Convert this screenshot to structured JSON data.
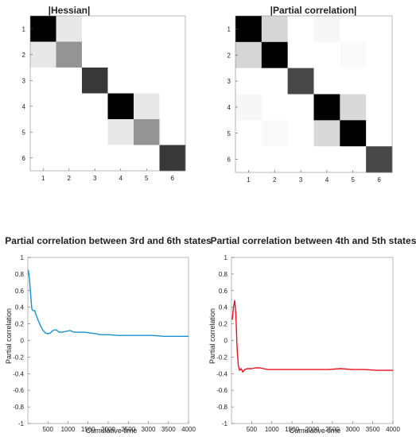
{
  "chart_data": [
    {
      "type": "heatmap",
      "title": "|Hessian|",
      "xticklabels": [
        "1",
        "2",
        "3",
        "4",
        "5",
        "6"
      ],
      "yticklabels": [
        "1",
        "2",
        "3",
        "4",
        "5",
        "6"
      ],
      "colormap": "gray-inverted (0 = white, 1 = black)",
      "values": [
        [
          1.0,
          0.09,
          0.0,
          0.0,
          0.0,
          0.0
        ],
        [
          0.09,
          0.42,
          0.0,
          0.0,
          0.0,
          0.0
        ],
        [
          0.0,
          0.0,
          0.78,
          0.0,
          0.0,
          0.0
        ],
        [
          0.0,
          0.0,
          0.0,
          1.0,
          0.09,
          0.0
        ],
        [
          0.0,
          0.0,
          0.0,
          0.09,
          0.42,
          0.0
        ],
        [
          0.0,
          0.0,
          0.0,
          0.0,
          0.0,
          0.78
        ]
      ]
    },
    {
      "type": "heatmap",
      "title": "|Partial correlation|",
      "xticklabels": [
        "1",
        "2",
        "3",
        "4",
        "5",
        "6"
      ],
      "yticklabels": [
        "1",
        "2",
        "3",
        "4",
        "5",
        "6"
      ],
      "colormap": "gray-inverted (0 = white, 1 = black)",
      "values": [
        [
          1.0,
          0.16,
          0.0,
          0.03,
          0.0,
          0.0
        ],
        [
          0.16,
          1.0,
          0.0,
          0.0,
          0.02,
          0.0
        ],
        [
          0.0,
          0.0,
          0.72,
          0.0,
          0.0,
          0.0
        ],
        [
          0.03,
          0.0,
          0.0,
          1.0,
          0.15,
          0.0
        ],
        [
          0.0,
          0.02,
          0.0,
          0.15,
          1.0,
          0.0
        ],
        [
          0.0,
          0.0,
          0.0,
          0.0,
          0.0,
          0.72
        ]
      ]
    },
    {
      "type": "line",
      "title": "Partial correlation between 3rd and 6th states",
      "xlabel": "Cumulative time",
      "ylabel": "Partial correlation",
      "xlim": [
        0,
        4000
      ],
      "ylim": [
        -1,
        1
      ],
      "xticks": [
        500,
        1000,
        1500,
        2000,
        2500,
        3000,
        3500,
        4000
      ],
      "yticks": [
        -1,
        -0.8,
        -0.6,
        -0.4,
        -0.2,
        0,
        0.2,
        0.4,
        0.6,
        0.8,
        1
      ],
      "grid": false,
      "series": [
        {
          "color": "#1a8fd0",
          "x": [
            10,
            40,
            70,
            100,
            130,
            170,
            210,
            260,
            320,
            380,
            440,
            500,
            560,
            620,
            700,
            780,
            850,
            950,
            1050,
            1150,
            1250,
            1400,
            1550,
            1700,
            1800,
            2000,
            2250,
            2500,
            2800,
            3100,
            3400,
            3700,
            4000
          ],
          "y": [
            0.85,
            0.74,
            0.56,
            0.38,
            0.36,
            0.36,
            0.3,
            0.24,
            0.17,
            0.12,
            0.09,
            0.08,
            0.09,
            0.12,
            0.13,
            0.1,
            0.1,
            0.11,
            0.12,
            0.1,
            0.1,
            0.1,
            0.09,
            0.08,
            0.07,
            0.07,
            0.06,
            0.06,
            0.06,
            0.06,
            0.05,
            0.05,
            0.05
          ]
        }
      ]
    },
    {
      "type": "line",
      "title": "Partial correlation between 4th and 5th states",
      "xlabel": "Cumulative time",
      "ylabel": "Partial correlation",
      "xlim": [
        0,
        4000
      ],
      "ylim": [
        -1,
        1
      ],
      "xticks": [
        500,
        1000,
        1500,
        2000,
        2500,
        3000,
        3500,
        4000
      ],
      "yticks": [
        -1,
        -0.8,
        -0.6,
        -0.4,
        -0.2,
        0,
        0.2,
        0.4,
        0.6,
        0.8,
        1
      ],
      "grid": false,
      "series": [
        {
          "color": "#e8101c",
          "x": [
            20,
            50,
            80,
            110,
            140,
            170,
            200,
            240,
            280,
            330,
            400,
            500,
            600,
            700,
            800,
            900,
            1000,
            1200,
            1500,
            1800,
            2100,
            2400,
            2700,
            3000,
            3300,
            3600,
            4000
          ],
          "y": [
            0.25,
            0.4,
            0.48,
            0.3,
            -0.1,
            -0.3,
            -0.36,
            -0.34,
            -0.38,
            -0.35,
            -0.34,
            -0.34,
            -0.33,
            -0.33,
            -0.34,
            -0.35,
            -0.35,
            -0.35,
            -0.35,
            -0.35,
            -0.35,
            -0.35,
            -0.34,
            -0.35,
            -0.35,
            -0.36,
            -0.36
          ]
        }
      ]
    }
  ]
}
